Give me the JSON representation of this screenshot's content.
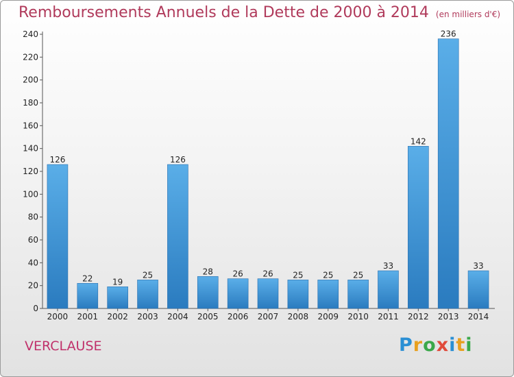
{
  "header": {
    "title": "Remboursements Annuels de la Dette de 2000 à 2014",
    "unit": "(en milliers d'€)"
  },
  "footer": {
    "town": "VERCLAUSE",
    "logo": "Proxiti"
  },
  "colors": {
    "title": "#b03a5b",
    "bar_light": "#5aaee8",
    "bar_dark": "#2a7bbf",
    "town": "#c0306a"
  },
  "chart_data": {
    "type": "bar",
    "categories": [
      "2000",
      "2001",
      "2002",
      "2003",
      "2004",
      "2005",
      "2006",
      "2007",
      "2008",
      "2009",
      "2010",
      "2011",
      "2012",
      "2013",
      "2014"
    ],
    "values": [
      126,
      22,
      19,
      25,
      126,
      28,
      26,
      26,
      25,
      25,
      25,
      33,
      142,
      236,
      33
    ],
    "yticks": [
      0,
      20,
      40,
      60,
      80,
      100,
      120,
      140,
      160,
      180,
      200,
      220,
      240
    ],
    "ylim": [
      0,
      240
    ],
    "grid": false,
    "legend": "none"
  }
}
